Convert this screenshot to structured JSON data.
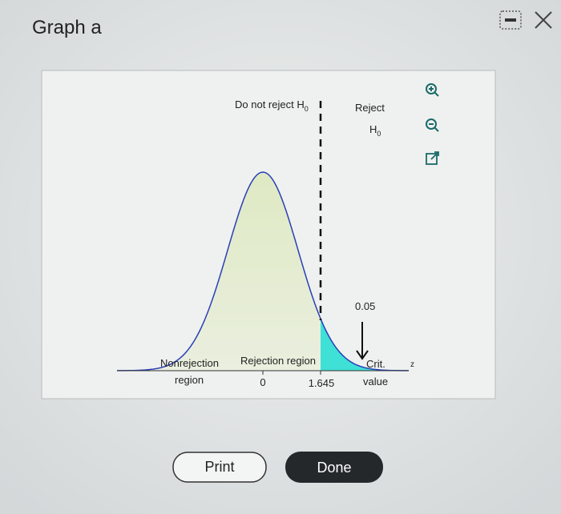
{
  "header": {
    "title": "Graph a"
  },
  "graph": {
    "nonreject_label": {
      "text": "Do not reject H",
      "subscript": "0"
    },
    "reject_label": {
      "line1": "Reject",
      "text": "H",
      "subscript": "0"
    },
    "alpha": "0.05",
    "nonrejection_region": {
      "line1": "Nonrejection",
      "line2": "region"
    },
    "rejection_region": "Rejection region",
    "axis_ticks": [
      "0",
      "1.645"
    ],
    "critical_value": {
      "line1": "Crit.",
      "line2": "value"
    },
    "axis_label": "z"
  },
  "buttons": {
    "print": "Print",
    "done": "Done"
  }
}
